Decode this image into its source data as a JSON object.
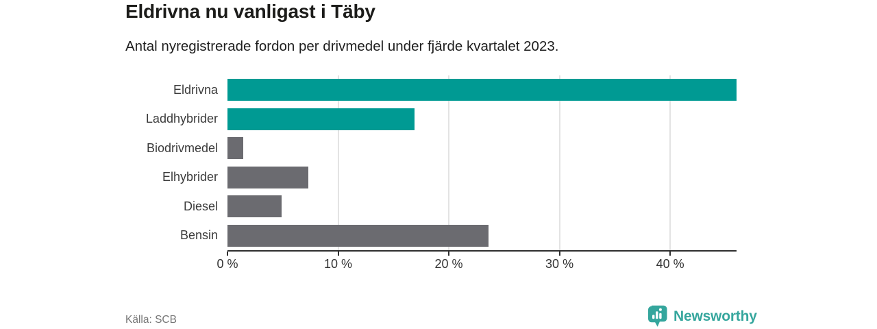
{
  "chart_data": {
    "type": "bar",
    "orientation": "horizontal",
    "title": "Eldrivna nu vanligast i Täby",
    "subtitle": "Antal nyregistrerade fordon per drivmedel under fjärde kvartalet 2023.",
    "categories": [
      "Eldrivna",
      "Laddhybrider",
      "Biodrivmedel",
      "Elhybrider",
      "Diesel",
      "Bensin"
    ],
    "values": [
      46.0,
      16.9,
      1.4,
      7.3,
      4.9,
      23.6
    ],
    "unit": "%",
    "xlim": [
      0,
      46
    ],
    "ticks": [
      {
        "value": 0,
        "label": "0 %"
      },
      {
        "value": 10,
        "label": "10 %"
      },
      {
        "value": 20,
        "label": "20 %"
      },
      {
        "value": 30,
        "label": "30 %"
      },
      {
        "value": 40,
        "label": "40 %"
      }
    ],
    "bar_colors": [
      "#009a93",
      "#009a93",
      "#6b6b70",
      "#6b6b70",
      "#6b6b70",
      "#6b6b70"
    ],
    "highlight_color": "#009a93",
    "base_color": "#6b6b70",
    "grid": "vertical",
    "legend": "none"
  },
  "footer": {
    "source": "Källa: SCB",
    "brand": "Newsworthy",
    "brand_color": "#35a69d"
  }
}
